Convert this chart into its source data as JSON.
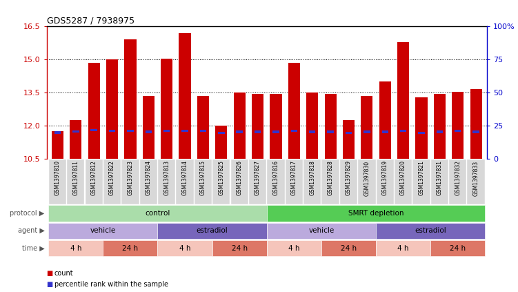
{
  "title": "GDS5287 / 7938975",
  "samples": [
    "GSM1397810",
    "GSM1397811",
    "GSM1397812",
    "GSM1397822",
    "GSM1397823",
    "GSM1397824",
    "GSM1397813",
    "GSM1397814",
    "GSM1397815",
    "GSM1397825",
    "GSM1397826",
    "GSM1397827",
    "GSM1397816",
    "GSM1397817",
    "GSM1397818",
    "GSM1397828",
    "GSM1397829",
    "GSM1397830",
    "GSM1397819",
    "GSM1397820",
    "GSM1397821",
    "GSM1397831",
    "GSM1397832",
    "GSM1397833"
  ],
  "bar_heights": [
    11.75,
    12.25,
    14.85,
    15.0,
    15.9,
    13.35,
    15.05,
    16.2,
    13.35,
    12.0,
    13.5,
    13.45,
    13.45,
    14.85,
    13.5,
    13.45,
    12.25,
    13.35,
    14.0,
    15.8,
    13.3,
    13.45,
    13.55,
    13.65
  ],
  "blue_positions": [
    11.65,
    11.7,
    11.75,
    11.72,
    11.72,
    11.68,
    11.72,
    11.72,
    11.72,
    11.62,
    11.68,
    11.68,
    11.68,
    11.72,
    11.68,
    11.68,
    11.62,
    11.68,
    11.68,
    11.72,
    11.62,
    11.68,
    11.72,
    11.68
  ],
  "ymin": 10.5,
  "ymax": 16.5,
  "y_ticks_left": [
    10.5,
    12.0,
    13.5,
    15.0,
    16.5
  ],
  "y_ticks_right_vals": [
    0,
    25,
    50,
    75,
    100
  ],
  "y_ticks_right_labels": [
    "0",
    "25",
    "50",
    "75",
    "100%"
  ],
  "bar_color": "#cc0000",
  "blue_color": "#3333cc",
  "chart_bg": "#f5f5f5",
  "tick_label_bg": "#d8d8d8",
  "protocol_labels": [
    {
      "text": "control",
      "start": 0,
      "end": 11,
      "color": "#aaddaa"
    },
    {
      "text": "SMRT depletion",
      "start": 12,
      "end": 23,
      "color": "#55cc55"
    }
  ],
  "agent_labels": [
    {
      "text": "vehicle",
      "start": 0,
      "end": 5,
      "color": "#bbaadd"
    },
    {
      "text": "estradiol",
      "start": 6,
      "end": 11,
      "color": "#7766bb"
    },
    {
      "text": "vehicle",
      "start": 12,
      "end": 17,
      "color": "#bbaadd"
    },
    {
      "text": "estradiol",
      "start": 18,
      "end": 23,
      "color": "#7766bb"
    }
  ],
  "time_labels": [
    {
      "text": "4 h",
      "start": 0,
      "end": 2,
      "color": "#f5c5bb"
    },
    {
      "text": "24 h",
      "start": 3,
      "end": 5,
      "color": "#dd7766"
    },
    {
      "text": "4 h",
      "start": 6,
      "end": 8,
      "color": "#f5c5bb"
    },
    {
      "text": "24 h",
      "start": 9,
      "end": 11,
      "color": "#dd7766"
    },
    {
      "text": "4 h",
      "start": 12,
      "end": 14,
      "color": "#f5c5bb"
    },
    {
      "text": "24 h",
      "start": 15,
      "end": 17,
      "color": "#dd7766"
    },
    {
      "text": "4 h",
      "start": 18,
      "end": 20,
      "color": "#f5c5bb"
    },
    {
      "text": "24 h",
      "start": 21,
      "end": 23,
      "color": "#dd7766"
    }
  ],
  "row_labels": [
    "protocol",
    "agent",
    "time"
  ],
  "legend_items": [
    {
      "color": "#cc0000",
      "label": "count"
    },
    {
      "color": "#3333cc",
      "label": "percentile rank within the sample"
    }
  ]
}
